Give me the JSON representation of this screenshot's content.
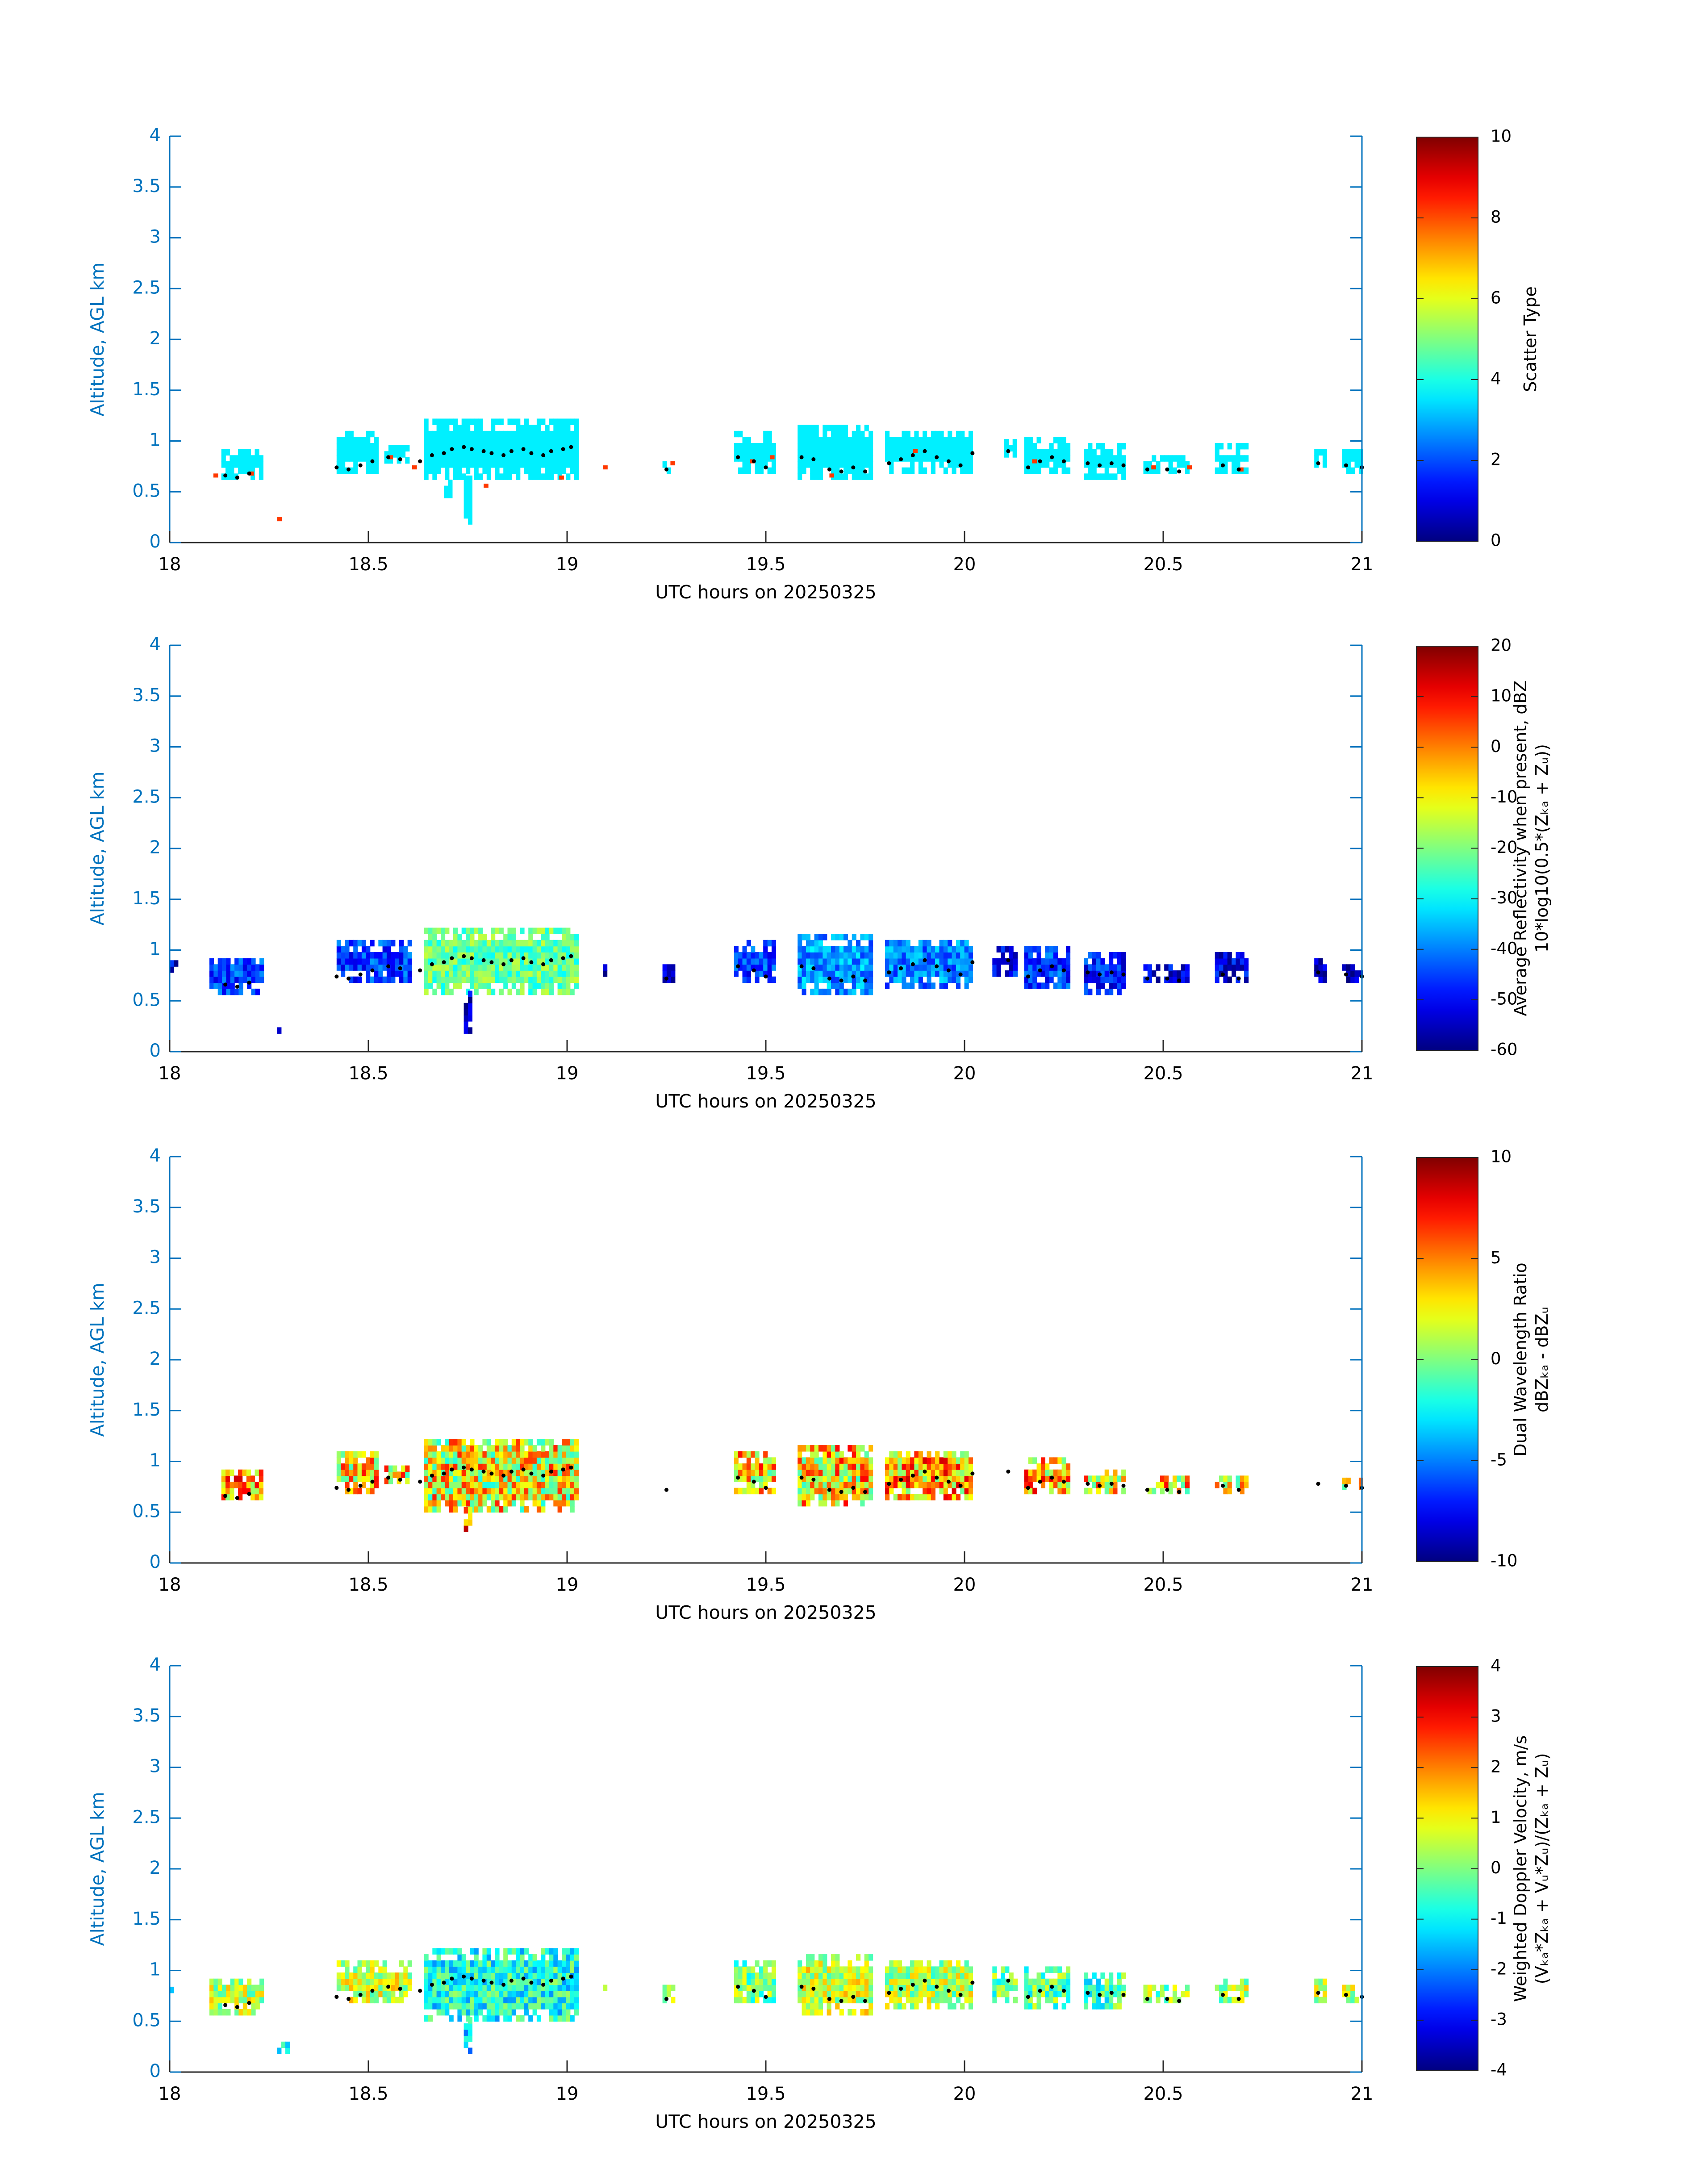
{
  "chart_data": [
    {
      "type": "heatmap",
      "xlabel": "UTC hours on 20250325",
      "ylabel": "Altitude, AGL km",
      "xlim": [
        18,
        21
      ],
      "ylim": [
        0,
        4
      ],
      "xticks": [
        "18",
        "18.5",
        "19",
        "19.5",
        "20",
        "20.5",
        "21"
      ],
      "yticks": [
        "0",
        "0.5",
        "1",
        "1.5",
        "2",
        "2.5",
        "3",
        "3.5",
        "4"
      ],
      "colorbar": {
        "label": "Scatter Type",
        "label_sub": "",
        "clim": [
          0,
          10
        ],
        "ticks": [
          "0",
          "2",
          "4",
          "6",
          "8",
          "10"
        ],
        "colormap": "jet"
      },
      "value_fill": 3.6,
      "segments": [
        {
          "x0": 18.13,
          "x1": 18.23,
          "yb": 0.62,
          "yt": 0.88,
          "v": 3.6
        },
        {
          "x0": 18.42,
          "x1": 18.52,
          "yb": 0.68,
          "yt": 1.06,
          "v": 3.6
        },
        {
          "x0": 18.54,
          "x1": 18.6,
          "yb": 0.78,
          "yt": 0.94,
          "v": 3.6
        },
        {
          "x0": 18.64,
          "x1": 19.02,
          "yb": 0.62,
          "yt": 1.18,
          "v": 3.6
        },
        {
          "x0": 19.42,
          "x1": 19.52,
          "yb": 0.68,
          "yt": 1.06,
          "v": 3.6
        },
        {
          "x0": 19.58,
          "x1": 19.76,
          "yb": 0.62,
          "yt": 1.12,
          "v": 3.6
        },
        {
          "x0": 19.8,
          "x1": 20.02,
          "yb": 0.68,
          "yt": 1.1,
          "v": 3.6
        },
        {
          "x0": 20.1,
          "x1": 20.13,
          "yb": 0.84,
          "yt": 1.0,
          "v": 3.6
        },
        {
          "x0": 20.15,
          "x1": 20.26,
          "yb": 0.68,
          "yt": 1.0,
          "v": 3.6
        },
        {
          "x0": 20.3,
          "x1": 20.4,
          "yb": 0.62,
          "yt": 0.94,
          "v": 3.6
        },
        {
          "x0": 20.45,
          "x1": 20.56,
          "yb": 0.68,
          "yt": 0.84,
          "v": 3.6
        },
        {
          "x0": 20.63,
          "x1": 20.71,
          "yb": 0.68,
          "yt": 0.94,
          "v": 3.6
        },
        {
          "x0": 20.88,
          "x1": 20.91,
          "yb": 0.74,
          "yt": 0.9,
          "v": 3.6
        },
        {
          "x0": 20.95,
          "x1": 21.0,
          "yb": 0.68,
          "yt": 0.9,
          "v": 3.6
        },
        {
          "x0": 19.24,
          "x1": 19.26,
          "yb": 0.68,
          "yt": 0.78,
          "v": 3.6
        },
        {
          "x0": 18.74,
          "x1": 18.76,
          "yb": 0.18,
          "yt": 0.62,
          "v": 3.6
        },
        {
          "x0": 18.69,
          "x1": 18.71,
          "yb": 0.44,
          "yt": 0.62,
          "v": 3.6
        }
      ],
      "cells": [
        {
          "x": 18.11,
          "y": 0.64,
          "v": 8.2
        },
        {
          "x": 18.2,
          "y": 0.66,
          "v": 8.2
        },
        {
          "x": 18.27,
          "y": 0.21,
          "v": 8.2
        },
        {
          "x": 18.55,
          "y": 0.82,
          "v": 8.2
        },
        {
          "x": 18.61,
          "y": 0.72,
          "v": 8.2
        },
        {
          "x": 18.79,
          "y": 0.54,
          "v": 8.2
        },
        {
          "x": 18.98,
          "y": 0.62,
          "v": 8.2
        },
        {
          "x": 19.09,
          "y": 0.72,
          "v": 8.2
        },
        {
          "x": 19.26,
          "y": 0.76,
          "v": 8.2
        },
        {
          "x": 19.46,
          "y": 0.78,
          "v": 8.2
        },
        {
          "x": 19.51,
          "y": 0.82,
          "v": 8.2
        },
        {
          "x": 19.66,
          "y": 0.64,
          "v": 8.2
        },
        {
          "x": 19.87,
          "y": 0.88,
          "v": 8.2
        },
        {
          "x": 20.17,
          "y": 0.78,
          "v": 8.2
        },
        {
          "x": 20.47,
          "y": 0.72,
          "v": 8.2
        },
        {
          "x": 20.56,
          "y": 0.72,
          "v": 8.2
        },
        {
          "x": 20.69,
          "y": 0.7,
          "v": 8.2
        }
      ],
      "jitter": 0.0
    },
    {
      "type": "heatmap",
      "xlabel": "UTC hours on 20250325",
      "ylabel": "Altitude, AGL km",
      "xlim": [
        18,
        21
      ],
      "ylim": [
        0,
        4
      ],
      "xticks": [
        "18",
        "18.5",
        "19",
        "19.5",
        "20",
        "20.5",
        "21"
      ],
      "yticks": [
        "0",
        "0.5",
        "1",
        "1.5",
        "2",
        "2.5",
        "3",
        "3.5",
        "4"
      ],
      "colorbar": {
        "label": "Average Reflectivity when present, dBZ",
        "label_sub": "10*log10(0.5*(Zₖₐ + Zᵤ))",
        "clim": [
          -60,
          20
        ],
        "ticks": [
          "-60",
          "-50",
          "-40",
          "-30",
          "-20",
          "-10",
          "0",
          "10",
          "20"
        ],
        "colormap": "jet"
      },
      "segments": [
        {
          "x0": 18.0,
          "x1": 18.02,
          "yb": 0.78,
          "yt": 0.9,
          "v": -52
        },
        {
          "x0": 18.1,
          "x1": 18.23,
          "yb": 0.56,
          "yt": 0.9,
          "v": -45
        },
        {
          "x0": 18.27,
          "x1": 18.3,
          "yb": 0.18,
          "yt": 0.28,
          "v": -55
        },
        {
          "x0": 18.42,
          "x1": 18.6,
          "yb": 0.68,
          "yt": 1.06,
          "v": -45
        },
        {
          "x0": 18.64,
          "x1": 19.02,
          "yb": 0.56,
          "yt": 1.18,
          "v": -22
        },
        {
          "x0": 18.74,
          "x1": 18.76,
          "yb": 0.18,
          "yt": 0.56,
          "v": -55
        },
        {
          "x0": 19.09,
          "x1": 19.1,
          "yb": 0.68,
          "yt": 0.84,
          "v": -55
        },
        {
          "x0": 19.24,
          "x1": 19.27,
          "yb": 0.68,
          "yt": 0.84,
          "v": -55
        },
        {
          "x0": 19.42,
          "x1": 19.52,
          "yb": 0.68,
          "yt": 1.06,
          "v": -45
        },
        {
          "x0": 19.58,
          "x1": 19.76,
          "yb": 0.56,
          "yt": 1.12,
          "v": -38
        },
        {
          "x0": 19.8,
          "x1": 20.02,
          "yb": 0.62,
          "yt": 1.1,
          "v": -40
        },
        {
          "x0": 20.07,
          "x1": 20.13,
          "yb": 0.74,
          "yt": 1.0,
          "v": -50
        },
        {
          "x0": 20.15,
          "x1": 20.26,
          "yb": 0.62,
          "yt": 1.0,
          "v": -45
        },
        {
          "x0": 20.3,
          "x1": 20.4,
          "yb": 0.56,
          "yt": 0.94,
          "v": -48
        },
        {
          "x0": 20.45,
          "x1": 20.56,
          "yb": 0.68,
          "yt": 0.84,
          "v": -52
        },
        {
          "x0": 20.63,
          "x1": 20.71,
          "yb": 0.68,
          "yt": 0.94,
          "v": -52
        },
        {
          "x0": 20.88,
          "x1": 20.91,
          "yb": 0.68,
          "yt": 0.9,
          "v": -55
        },
        {
          "x0": 20.95,
          "x1": 21.0,
          "yb": 0.68,
          "yt": 0.84,
          "v": -55
        }
      ],
      "cells": [],
      "jitter": 8.0
    },
    {
      "type": "heatmap",
      "xlabel": "UTC hours on 20250325",
      "ylabel": "Altitude, AGL km",
      "xlim": [
        18,
        21
      ],
      "ylim": [
        0,
        4
      ],
      "xticks": [
        "18",
        "18.5",
        "19",
        "19.5",
        "20",
        "20.5",
        "21"
      ],
      "yticks": [
        "0",
        "0.5",
        "1",
        "1.5",
        "2",
        "2.5",
        "3",
        "3.5",
        "4"
      ],
      "colorbar": {
        "label": "Dual Wavelength Ratio",
        "label_sub": "dBZₖₐ - dBZᵤ",
        "clim": [
          -10,
          10
        ],
        "ticks": [
          "-10",
          "-5",
          "0",
          "5",
          "10"
        ],
        "colormap": "jet"
      },
      "segments": [
        {
          "x0": 18.13,
          "x1": 18.23,
          "yb": 0.62,
          "yt": 0.88,
          "v": 4
        },
        {
          "x0": 18.42,
          "x1": 18.52,
          "yb": 0.68,
          "yt": 1.06,
          "v": 3
        },
        {
          "x0": 18.54,
          "x1": 18.6,
          "yb": 0.78,
          "yt": 0.94,
          "v": 3
        },
        {
          "x0": 18.64,
          "x1": 19.02,
          "yb": 0.5,
          "yt": 1.18,
          "v": 2.5
        },
        {
          "x0": 18.74,
          "x1": 18.76,
          "yb": 0.25,
          "yt": 0.5,
          "v": 6
        },
        {
          "x0": 19.42,
          "x1": 19.52,
          "yb": 0.68,
          "yt": 1.06,
          "v": 3
        },
        {
          "x0": 19.58,
          "x1": 19.76,
          "yb": 0.56,
          "yt": 1.12,
          "v": 3
        },
        {
          "x0": 19.8,
          "x1": 20.02,
          "yb": 0.62,
          "yt": 1.1,
          "v": 4
        },
        {
          "x0": 20.15,
          "x1": 20.26,
          "yb": 0.68,
          "yt": 1.0,
          "v": 4
        },
        {
          "x0": 20.3,
          "x1": 20.4,
          "yb": 0.68,
          "yt": 0.9,
          "v": 3
        },
        {
          "x0": 20.45,
          "x1": 20.56,
          "yb": 0.68,
          "yt": 0.84,
          "v": 3
        },
        {
          "x0": 20.63,
          "x1": 20.71,
          "yb": 0.68,
          "yt": 0.84,
          "v": 2
        },
        {
          "x0": 20.95,
          "x1": 21.0,
          "yb": 0.72,
          "yt": 0.8,
          "v": 3
        }
      ],
      "cells": [],
      "jitter": 4.5
    },
    {
      "type": "heatmap",
      "xlabel": "UTC hours on 20250325",
      "ylabel": "Altitude, AGL km",
      "xlim": [
        18,
        21
      ],
      "ylim": [
        0,
        4
      ],
      "xticks": [
        "18",
        "18.5",
        "19",
        "19.5",
        "20",
        "20.5",
        "21"
      ],
      "yticks": [
        "0",
        "0.5",
        "1",
        "1.5",
        "2",
        "2.5",
        "3",
        "3.5",
        "4"
      ],
      "colorbar": {
        "label": "Weighted Doppler Velocity, m/s",
        "label_sub": "(Vₖₐ*Zₖₐ + Vᵤ*Zᵤ)/(Zₖₐ + Zᵤ)",
        "clim": [
          -4,
          4
        ],
        "ticks": [
          "-4",
          "-3",
          "-2",
          "-1",
          "0",
          "1",
          "2",
          "3",
          "4"
        ],
        "colormap": "jet"
      },
      "segments": [
        {
          "x0": 18.0,
          "x1": 18.02,
          "yb": 0.78,
          "yt": 0.9,
          "v": -0.5
        },
        {
          "x0": 18.1,
          "x1": 18.23,
          "yb": 0.56,
          "yt": 0.9,
          "v": 0.5
        },
        {
          "x0": 18.27,
          "x1": 18.3,
          "yb": 0.18,
          "yt": 0.28,
          "v": -0.5
        },
        {
          "x0": 18.42,
          "x1": 18.6,
          "yb": 0.68,
          "yt": 1.06,
          "v": 0.6
        },
        {
          "x0": 18.64,
          "x1": 19.02,
          "yb": 0.5,
          "yt": 1.18,
          "v": -0.8
        },
        {
          "x0": 18.74,
          "x1": 18.76,
          "yb": 0.18,
          "yt": 0.5,
          "v": -1.2
        },
        {
          "x0": 19.09,
          "x1": 19.1,
          "yb": 0.68,
          "yt": 0.84,
          "v": -0.5
        },
        {
          "x0": 19.24,
          "x1": 19.27,
          "yb": 0.68,
          "yt": 0.84,
          "v": 0.5
        },
        {
          "x0": 19.42,
          "x1": 19.52,
          "yb": 0.68,
          "yt": 1.06,
          "v": 0.0
        },
        {
          "x0": 19.58,
          "x1": 19.76,
          "yb": 0.56,
          "yt": 1.12,
          "v": 0.6
        },
        {
          "x0": 19.8,
          "x1": 20.02,
          "yb": 0.62,
          "yt": 1.1,
          "v": 0.4
        },
        {
          "x0": 20.07,
          "x1": 20.13,
          "yb": 0.68,
          "yt": 1.0,
          "v": -0.2
        },
        {
          "x0": 20.15,
          "x1": 20.26,
          "yb": 0.62,
          "yt": 1.0,
          "v": -0.2
        },
        {
          "x0": 20.3,
          "x1": 20.4,
          "yb": 0.62,
          "yt": 0.94,
          "v": -0.4
        },
        {
          "x0": 20.45,
          "x1": 20.56,
          "yb": 0.68,
          "yt": 0.84,
          "v": 0.2
        },
        {
          "x0": 20.63,
          "x1": 20.71,
          "yb": 0.68,
          "yt": 0.9,
          "v": 0.4
        },
        {
          "x0": 20.88,
          "x1": 20.91,
          "yb": 0.68,
          "yt": 0.9,
          "v": 0.4
        },
        {
          "x0": 20.95,
          "x1": 21.0,
          "yb": 0.68,
          "yt": 0.84,
          "v": 0.4
        }
      ],
      "cells": [],
      "jitter": 1.1
    }
  ],
  "cloud_base_points": {
    "x": [
      18.14,
      18.17,
      18.2,
      18.42,
      18.45,
      18.48,
      18.51,
      18.55,
      18.58,
      18.63,
      18.66,
      18.69,
      18.71,
      18.74,
      18.76,
      18.79,
      18.81,
      18.84,
      18.86,
      18.89,
      18.91,
      18.94,
      18.96,
      18.99,
      19.01,
      19.25,
      19.43,
      19.47,
      19.5,
      19.59,
      19.62,
      19.66,
      19.69,
      19.72,
      19.75,
      19.81,
      19.84,
      19.87,
      19.9,
      19.93,
      19.96,
      19.99,
      20.02,
      20.11,
      20.16,
      20.19,
      20.22,
      20.25,
      20.31,
      20.34,
      20.37,
      20.4,
      20.46,
      20.51,
      20.54,
      20.65,
      20.69,
      20.89,
      20.96,
      21.0
    ],
    "y": [
      0.66,
      0.64,
      0.68,
      0.74,
      0.72,
      0.76,
      0.8,
      0.84,
      0.82,
      0.8,
      0.86,
      0.88,
      0.92,
      0.94,
      0.92,
      0.9,
      0.88,
      0.86,
      0.9,
      0.92,
      0.88,
      0.86,
      0.9,
      0.92,
      0.94,
      0.72,
      0.84,
      0.8,
      0.74,
      0.84,
      0.82,
      0.72,
      0.7,
      0.74,
      0.7,
      0.78,
      0.82,
      0.86,
      0.9,
      0.84,
      0.8,
      0.76,
      0.88,
      0.9,
      0.74,
      0.8,
      0.84,
      0.8,
      0.78,
      0.76,
      0.78,
      0.76,
      0.72,
      0.72,
      0.7,
      0.76,
      0.72,
      0.78,
      0.76,
      0.74
    ]
  }
}
